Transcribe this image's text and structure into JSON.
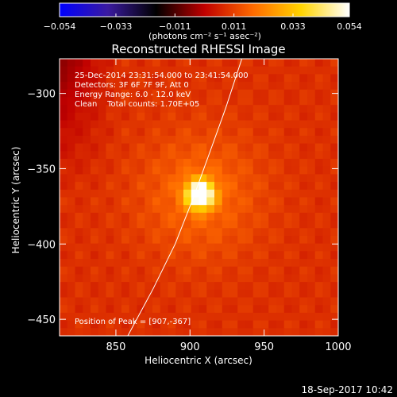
{
  "chart_data": {
    "type": "heatmap",
    "title": "Reconstructed RHESSI Image",
    "xlabel": "Heliocentric X (arcsec)",
    "ylabel": "Heliocentric Y (arcsec)",
    "xlim": [
      812,
      1000
    ],
    "ylim": [
      -461,
      -277
    ],
    "x_ticks": [
      850,
      900,
      950,
      1000
    ],
    "x_tick_labels": [
      "850",
      "900",
      "950",
      "1000"
    ],
    "y_ticks": [
      -300,
      -350,
      -400,
      -450
    ],
    "y_tick_labels": [
      "−300",
      "−350",
      "−400",
      "−450"
    ],
    "colorbar": {
      "range": [
        -0.054,
        0.054
      ],
      "ticks": [
        -0.054,
        -0.033,
        -0.011,
        0.011,
        0.033,
        0.054
      ],
      "tick_labels": [
        "−0.054",
        "−0.033",
        "−0.011",
        "0.011",
        "0.033",
        "0.054"
      ],
      "label": "(photons cm⁻² s⁻¹ asec⁻²)",
      "colormap": [
        "#0000ff",
        "#3a1aa0",
        "#000000",
        "#c00000",
        "#ff6a00",
        "#ffd400",
        "#ffffff"
      ]
    },
    "annotations": [
      "25-Dec-2014 23:31:54.000 to 23:41:54.000",
      "Detectors: 3F 6F 7F 9F, Att 0",
      "Energy Range: 6.0 - 12.0 keV",
      "Clean    Total counts: 1.70E+05"
    ],
    "peak_label": "Position of Peak = [907,-367]",
    "peak": {
      "x": 907,
      "y": -367,
      "value": 0.054
    },
    "limb_curve": [
      [
        858,
        -461
      ],
      [
        875,
        -430
      ],
      [
        890,
        -400
      ],
      [
        902,
        -370
      ],
      [
        913,
        -340
      ],
      [
        924,
        -310
      ],
      [
        935,
        -277
      ]
    ],
    "background_level": 0.01,
    "dark_corner_value": -0.006,
    "date_stamp": "18-Sep-2017 10:42"
  }
}
